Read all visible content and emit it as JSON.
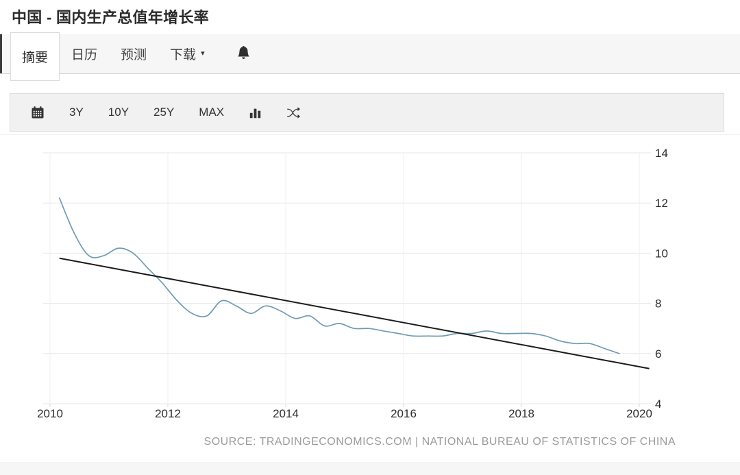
{
  "header": {
    "title": "中国 - 国内生产总值年增长率"
  },
  "tabs": {
    "items": [
      {
        "label": "摘要",
        "active": true
      },
      {
        "label": "日历",
        "active": false
      },
      {
        "label": "预测",
        "active": false
      },
      {
        "label": "下载",
        "active": false,
        "caret": "▾"
      }
    ]
  },
  "toolbar": {
    "ranges": [
      "3Y",
      "10Y",
      "25Y",
      "MAX"
    ],
    "icons": [
      "calendar-icon",
      "bar-chart-icon",
      "shuffle-icon"
    ]
  },
  "chart_data": {
    "type": "line",
    "title": "中国 - 国内生产总值年增长率",
    "x_periods": [
      "2010 Q1",
      "2010 Q2",
      "2010 Q3",
      "2010 Q4",
      "2011 Q1",
      "2011 Q2",
      "2011 Q3",
      "2011 Q4",
      "2012 Q1",
      "2012 Q2",
      "2012 Q3",
      "2012 Q4",
      "2013 Q1",
      "2013 Q2",
      "2013 Q3",
      "2013 Q4",
      "2014 Q1",
      "2014 Q2",
      "2014 Q3",
      "2014 Q4",
      "2015 Q1",
      "2015 Q2",
      "2015 Q3",
      "2015 Q4",
      "2016 Q1",
      "2016 Q2",
      "2016 Q3",
      "2016 Q4",
      "2017 Q1",
      "2017 Q2",
      "2017 Q3",
      "2017 Q4",
      "2018 Q1",
      "2018 Q2",
      "2018 Q3",
      "2018 Q4",
      "2019 Q1",
      "2019 Q2",
      "2019 Q3"
    ],
    "x_start": 2010.16,
    "x_step": 0.25,
    "series": [
      {
        "name": "国内生产总值年增长率 (%)",
        "color": "#6e9bb4",
        "values": [
          12.2,
          10.8,
          9.9,
          9.9,
          10.2,
          10.0,
          9.4,
          8.8,
          8.1,
          7.6,
          7.5,
          8.1,
          7.9,
          7.6,
          7.9,
          7.7,
          7.4,
          7.5,
          7.1,
          7.2,
          7.0,
          7.0,
          6.9,
          6.8,
          6.7,
          6.7,
          6.7,
          6.8,
          6.8,
          6.9,
          6.8,
          6.8,
          6.8,
          6.7,
          6.5,
          6.4,
          6.4,
          6.2,
          6.0
        ]
      }
    ],
    "trendline": {
      "x1": 2010.16,
      "v1": 9.8,
      "x2": 2020.17,
      "v2": 5.4,
      "color": "#1b1b1b"
    },
    "xticks": [
      2010,
      2012,
      2014,
      2016,
      2018,
      2020
    ],
    "yticks": [
      4,
      6,
      8,
      10,
      12,
      14
    ],
    "xlim": [
      2009.88,
      2020.2
    ],
    "ylim": [
      4,
      14.7
    ],
    "grid": true,
    "legend": "none",
    "source": "SOURCE: TRADINGECONOMICS.COM | NATIONAL BUREAU OF STATISTICS OF CHINA"
  }
}
